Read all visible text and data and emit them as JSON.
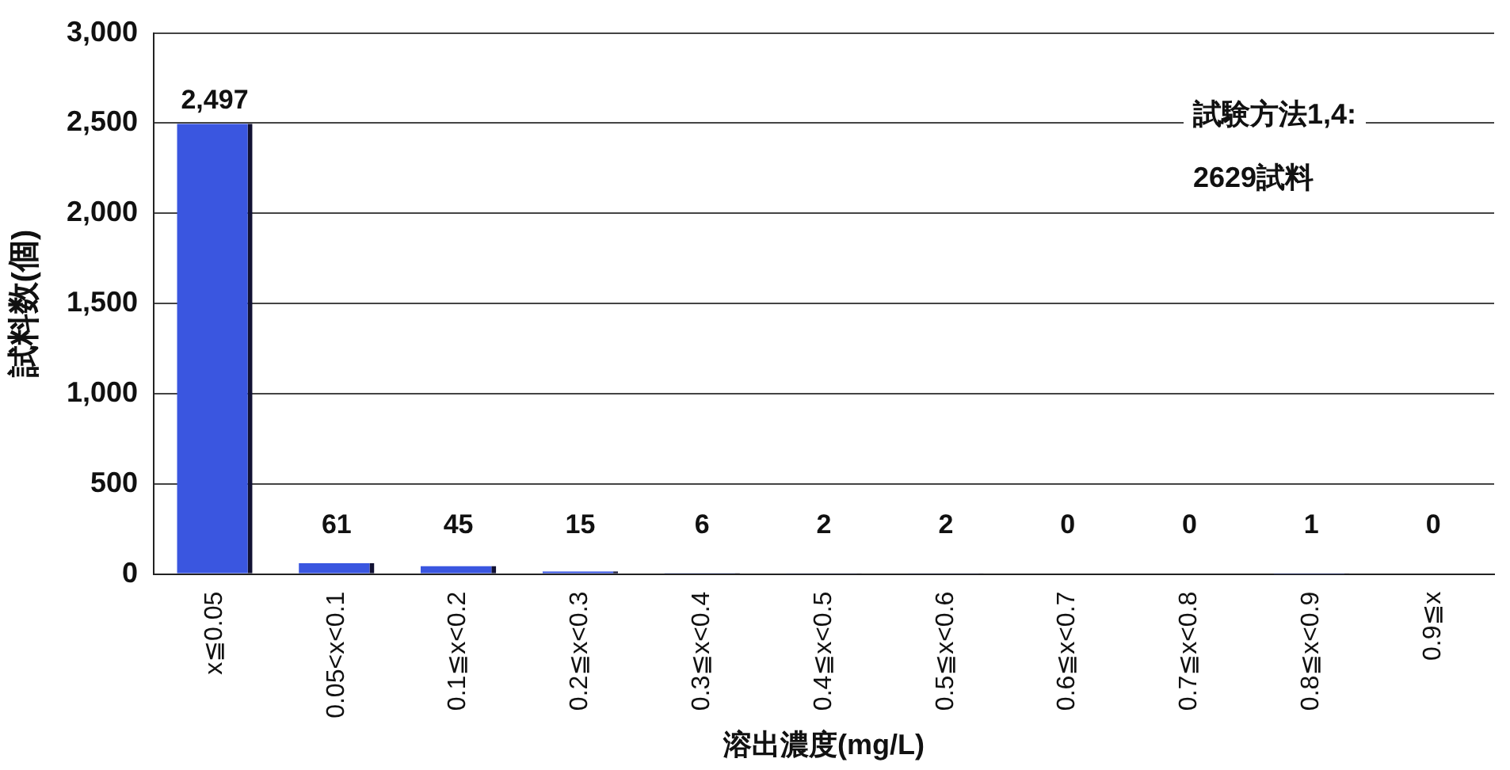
{
  "chart_data": {
    "type": "bar",
    "xlabel": "溶出濃度(mg/L)",
    "ylabel": "試料数(個)",
    "categories": [
      "x≦0.05",
      "0.05<x<0.1",
      "0.1≦x<0.2",
      "0.2≦x<0.3",
      "0.3≦x<0.4",
      "0.4≦x<0.5",
      "0.5≦x<0.6",
      "0.6≦x<0.7",
      "0.7≦x<0.8",
      "0.8≦x<0.9",
      "0.9≦x"
    ],
    "values": [
      2497,
      61,
      45,
      15,
      6,
      2,
      2,
      0,
      0,
      1,
      0
    ],
    "value_labels": [
      "2,497",
      "61",
      "45",
      "15",
      "6",
      "2",
      "2",
      "0",
      "0",
      "1",
      "0"
    ],
    "color": "#3a56e0",
    "ylim": [
      0,
      3000
    ],
    "yticks": [
      {
        "value": 0,
        "label": "0"
      },
      {
        "value": 500,
        "label": "500"
      },
      {
        "value": 1000,
        "label": "1,000"
      },
      {
        "value": 1500,
        "label": "1,500"
      },
      {
        "value": 2000,
        "label": "2,000"
      },
      {
        "value": 2500,
        "label": "2,500"
      },
      {
        "value": 3000,
        "label": "3,000"
      }
    ],
    "grid": "y",
    "legend": false,
    "annotations": [
      "試験方法1,4:",
      "2629試料"
    ]
  }
}
